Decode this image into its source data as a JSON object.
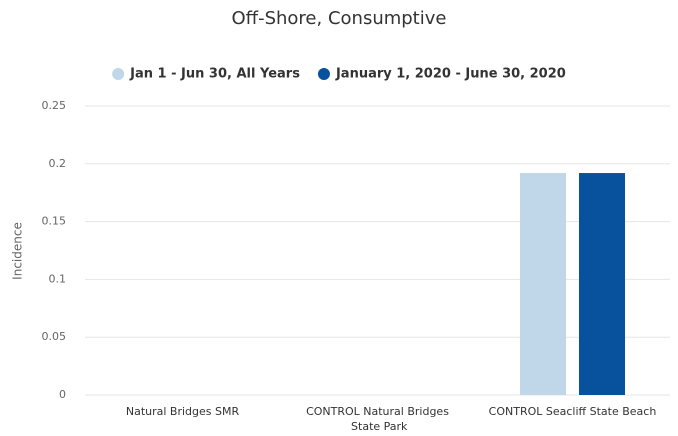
{
  "chart_data": {
    "type": "bar",
    "title": "Off-Shore, Consumptive",
    "y_label": "Incidence",
    "categories": [
      "Natural Bridges SMR",
      "CONTROL Natural Bridges State Park",
      "CONTROL Seacliff State Beach"
    ],
    "series": [
      {
        "name": "Jan 1 - Jun 30, All Years",
        "color": "#bfd7e8",
        "values": [
          0,
          0,
          0.192
        ]
      },
      {
        "name": "January 1, 2020 - June 30, 2020",
        "color": "#08519c",
        "values": [
          0,
          0,
          0.192
        ]
      }
    ],
    "ylim": [
      0,
      0.25
    ],
    "yticks": [
      0,
      0.05,
      0.1,
      0.15,
      0.2,
      0.25
    ],
    "grid": true,
    "legend": "top"
  }
}
